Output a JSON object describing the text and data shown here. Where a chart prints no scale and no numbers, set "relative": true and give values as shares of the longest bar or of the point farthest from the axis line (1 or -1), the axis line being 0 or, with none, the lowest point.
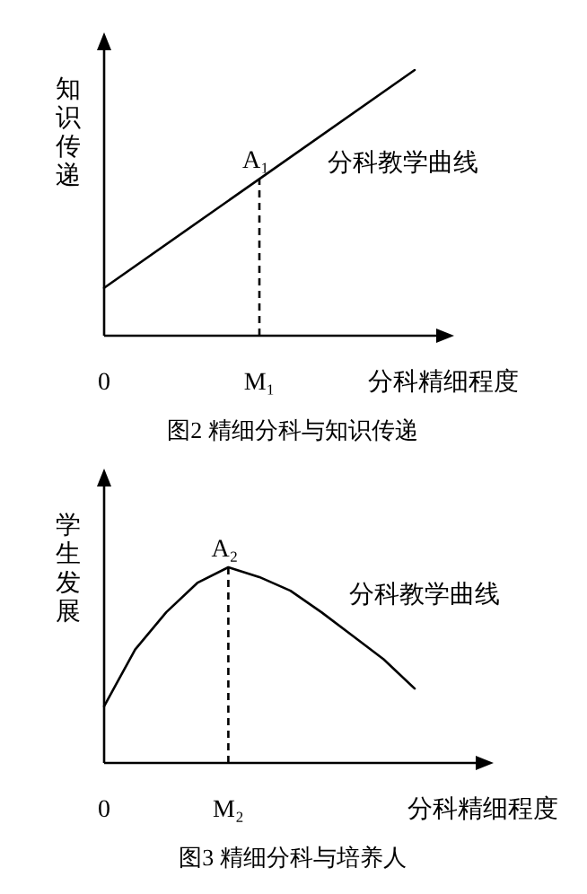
{
  "chart_data": [
    {
      "type": "line",
      "relative": true,
      "title": "图2  精细分科与知识传递",
      "ylabel": "知识传递",
      "xlabel": "分科精细程度",
      "categories": [
        "0",
        "M₁",
        null
      ],
      "annotations": [
        {
          "text": "A₁",
          "x": "M₁",
          "y": 0.59
        }
      ],
      "ref_lines": [
        {
          "axis": "x",
          "value": "M₁",
          "line_style": "dashed"
        }
      ],
      "series": [
        {
          "name": "分科教学曲线",
          "color": "#000000",
          "values": [
            0.18,
            0.59,
            1
          ]
        }
      ]
    },
    {
      "type": "line",
      "relative": true,
      "title": "图3  精细分科与培养人",
      "ylabel": "学生发展",
      "xlabel": "分科精细程度",
      "categories": [
        "0",
        null,
        null,
        null,
        "M₂",
        null,
        null,
        null,
        null,
        null,
        null
      ],
      "annotations": [
        {
          "text": "A₂",
          "x": "M₂",
          "y": 1
        }
      ],
      "ref_lines": [
        {
          "axis": "x",
          "value": "M₂",
          "line_style": "dashed"
        }
      ],
      "series": [
        {
          "name": "分科教学曲线",
          "color": "#000000",
          "values": [
            0.29,
            0.58,
            0.77,
            0.92,
            1,
            0.95,
            0.88,
            0.77,
            0.65,
            0.53,
            0.38
          ]
        }
      ]
    }
  ]
}
